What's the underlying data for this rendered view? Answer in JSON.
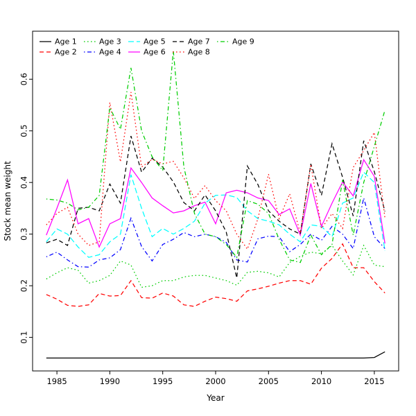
{
  "figure": {
    "background": "#ffffff"
  },
  "chart_data": {
    "type": "line",
    "title": "",
    "xlabel": "Year",
    "ylabel": "Stock mean weight",
    "x": [
      1984,
      1985,
      1986,
      1987,
      1988,
      1989,
      1990,
      1991,
      1992,
      1993,
      1994,
      1995,
      1996,
      1997,
      1998,
      1999,
      2000,
      2001,
      2002,
      2003,
      2004,
      2005,
      2006,
      2007,
      2008,
      2009,
      2010,
      2011,
      2012,
      2013,
      2014,
      2015,
      2016
    ],
    "xlim": [
      1982.7,
      2017.3
    ],
    "ylim": [
      0.035,
      0.693
    ],
    "xticks": [
      1985,
      1990,
      1995,
      2000,
      2005,
      2010,
      2015
    ],
    "yticks": [
      0.1,
      0.2,
      0.3,
      0.4,
      0.5,
      0.6
    ],
    "grid": false,
    "legend_position": "top-left-inside",
    "legend_rows": [
      [
        "Age 1",
        "Age 3",
        "Age 5",
        "Age 7",
        "Age 9"
      ],
      [
        "Age 2",
        "Age 4",
        "Age 6",
        "Age 8"
      ]
    ],
    "series": [
      {
        "name": "Age 1",
        "color": "#000000",
        "dash": "solid",
        "values": [
          0.06,
          0.06,
          0.06,
          0.06,
          0.06,
          0.06,
          0.06,
          0.06,
          0.06,
          0.06,
          0.06,
          0.06,
          0.06,
          0.06,
          0.06,
          0.06,
          0.06,
          0.06,
          0.06,
          0.06,
          0.06,
          0.06,
          0.06,
          0.06,
          0.06,
          0.06,
          0.06,
          0.06,
          0.06,
          0.06,
          0.06,
          0.061,
          0.072
        ]
      },
      {
        "name": "Age 2",
        "color": "#ff0000",
        "dash": "dashed",
        "values": [
          0.183,
          0.174,
          0.162,
          0.16,
          0.163,
          0.185,
          0.18,
          0.181,
          0.21,
          0.177,
          0.176,
          0.186,
          0.18,
          0.163,
          0.16,
          0.17,
          0.178,
          0.175,
          0.17,
          0.19,
          0.194,
          0.199,
          0.205,
          0.21,
          0.21,
          0.203,
          0.234,
          0.253,
          0.281,
          0.235,
          0.235,
          0.208,
          0.186
        ]
      },
      {
        "name": "Age 3",
        "color": "#00cd00",
        "dash": "dotted",
        "values": [
          0.213,
          0.225,
          0.235,
          0.23,
          0.205,
          0.21,
          0.22,
          0.248,
          0.24,
          0.197,
          0.2,
          0.21,
          0.21,
          0.217,
          0.22,
          0.22,
          0.215,
          0.21,
          0.201,
          0.226,
          0.228,
          0.225,
          0.217,
          0.245,
          0.257,
          0.265,
          0.262,
          0.278,
          0.248,
          0.221,
          0.278,
          0.24,
          0.237
        ]
      },
      {
        "name": "Age 4",
        "color": "#0000ff",
        "dash": "dashdot",
        "values": [
          0.256,
          0.265,
          0.25,
          0.237,
          0.236,
          0.25,
          0.254,
          0.27,
          0.331,
          0.276,
          0.248,
          0.28,
          0.29,
          0.303,
          0.295,
          0.3,
          0.295,
          0.284,
          0.25,
          0.246,
          0.291,
          0.296,
          0.295,
          0.266,
          0.28,
          0.3,
          0.288,
          0.315,
          0.3,
          0.272,
          0.37,
          0.295,
          0.272
        ]
      },
      {
        "name": "Age 5",
        "color": "#00ffff",
        "dash": "longdash",
        "values": [
          0.285,
          0.31,
          0.3,
          0.275,
          0.255,
          0.26,
          0.285,
          0.3,
          0.415,
          0.35,
          0.295,
          0.311,
          0.3,
          0.311,
          0.325,
          0.36,
          0.375,
          0.376,
          0.371,
          0.345,
          0.33,
          0.325,
          0.318,
          0.3,
          0.285,
          0.318,
          0.315,
          0.295,
          0.36,
          0.37,
          0.42,
          0.4,
          0.268
        ]
      },
      {
        "name": "Age 6",
        "color": "#ff00ff",
        "dash": "solid",
        "values": [
          0.298,
          0.35,
          0.405,
          0.32,
          0.33,
          0.275,
          0.32,
          0.33,
          0.428,
          0.4,
          0.37,
          0.355,
          0.341,
          0.345,
          0.355,
          0.362,
          0.32,
          0.38,
          0.385,
          0.38,
          0.37,
          0.365,
          0.338,
          0.349,
          0.298,
          0.398,
          0.315,
          0.36,
          0.401,
          0.374,
          0.444,
          0.412,
          0.282
        ]
      },
      {
        "name": "Age 7",
        "color": "#000000",
        "dash": "dashed",
        "values": [
          0.283,
          0.29,
          0.278,
          0.35,
          0.352,
          0.345,
          0.397,
          0.36,
          0.49,
          0.42,
          0.447,
          0.43,
          0.401,
          0.361,
          0.345,
          0.376,
          0.345,
          0.304,
          0.215,
          0.432,
          0.396,
          0.345,
          0.325,
          0.31,
          0.3,
          0.436,
          0.375,
          0.475,
          0.41,
          0.335,
          0.481,
          0.421,
          0.344
        ]
      },
      {
        "name": "Age 8",
        "color": "#ff0000",
        "dash": "dotted",
        "values": [
          0.318,
          0.34,
          0.352,
          0.3,
          0.278,
          0.285,
          0.555,
          0.44,
          0.575,
          0.43,
          0.445,
          0.436,
          0.441,
          0.409,
          0.369,
          0.394,
          0.365,
          0.345,
          0.3,
          0.271,
          0.33,
          0.416,
          0.33,
          0.378,
          0.302,
          0.435,
          0.311,
          0.34,
          0.311,
          0.429,
          0.462,
          0.497,
          0.331
        ]
      },
      {
        "name": "Age 9",
        "color": "#00cd00",
        "dash": "dashdot",
        "values": [
          0.368,
          0.366,
          0.36,
          0.347,
          0.352,
          0.375,
          0.545,
          0.503,
          0.622,
          0.5,
          0.45,
          0.423,
          0.655,
          0.43,
          0.34,
          0.3,
          0.295,
          0.28,
          0.255,
          0.365,
          0.358,
          0.34,
          0.29,
          0.25,
          0.245,
          0.298,
          0.26,
          0.28,
          0.405,
          0.298,
          0.4,
          0.47,
          0.54
        ]
      }
    ]
  }
}
